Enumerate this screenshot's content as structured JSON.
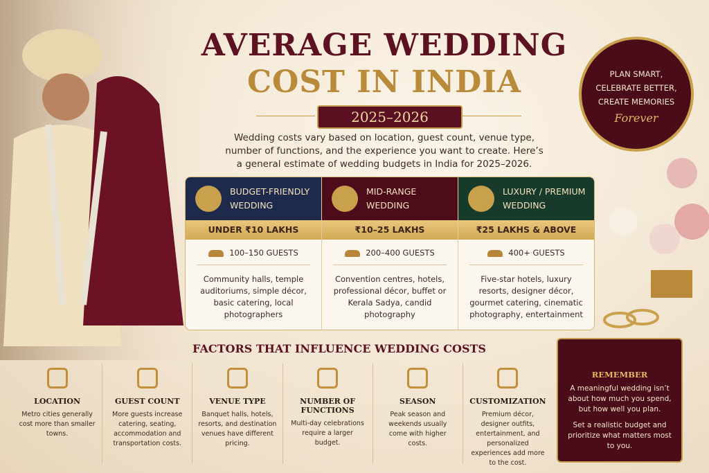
{
  "header": {
    "title_line1": "AVERAGE WEDDING",
    "title_line2": "COST IN INDIA",
    "years": "2025–2026",
    "intro": "Wedding costs vary based on location, guest count, venue type, number of functions, and the experience you want to create. Here’s a general estimate of wedding budgets in India for 2025–2026."
  },
  "badge": {
    "lines": [
      "PLAN SMART,",
      "CELEBRATE BETTER,",
      "CREATE MEMORIES"
    ],
    "script": "Forever"
  },
  "tiers": [
    {
      "name_line1": "BUDGET-FRIENDLY",
      "name_line2": "WEDDING",
      "price": "UNDER ₹10 LAKHS",
      "guests": "100–150 GUESTS",
      "details": "Community halls, temple auditoriums, simple décor, basic catering, local photographers"
    },
    {
      "name_line1": "MID-RANGE",
      "name_line2": "WEDDING",
      "price": "₹10–25 LAKHS",
      "guests": "200–400 GUESTS",
      "details": "Convention centres, hotels, professional décor, buffet or Kerala Sadya, candid photography"
    },
    {
      "name_line1": "LUXURY / PREMIUM",
      "name_line2": "WEDDING",
      "price": "₹25 LAKHS & ABOVE",
      "guests": "400+ GUESTS",
      "details": "Five-star hotels, luxury resorts, designer décor, gourmet catering, cinematic photography, entertainment"
    }
  ],
  "factors": {
    "title": "FACTORS THAT INFLUENCE WEDDING COSTS",
    "items": [
      {
        "name": "LOCATION",
        "text": "Metro cities generally cost more than smaller towns."
      },
      {
        "name": "GUEST COUNT",
        "text": "More guests increase catering, seating, accommodation and transportation costs."
      },
      {
        "name": "VENUE TYPE",
        "text": "Banquet halls, hotels, resorts, and destination venues have different pricing."
      },
      {
        "name": "NUMBER OF FUNCTIONS",
        "text": "Multi-day celebrations require a larger budget."
      },
      {
        "name": "SEASON",
        "text": "Peak season and weekends usually come with higher costs."
      },
      {
        "name": "CUSTOMIZATION",
        "text": "Premium décor, designer outfits, entertainment, and personalized experiences add more to the cost."
      }
    ]
  },
  "remember": {
    "title": "REMEMBER",
    "paragraphs": [
      "A meaningful wedding isn’t about how much you spend, but how well you plan.",
      "Set a realistic budget and prioritize what matters most to you."
    ]
  }
}
